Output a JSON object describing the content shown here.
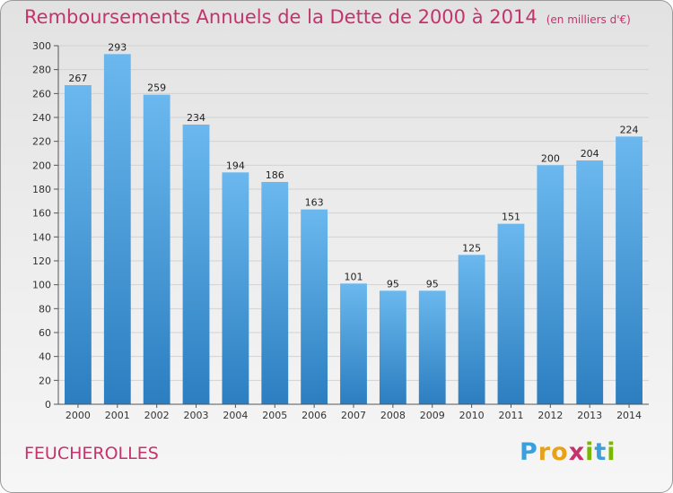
{
  "title": "Remboursements Annuels de la Dette de 2000 à 2014",
  "unit_label": "(en milliers d'€)",
  "commune": "FEUCHEROLLES",
  "logo": {
    "letters": [
      "P",
      "r",
      "o",
      "x",
      "i",
      "t",
      "i"
    ],
    "colors": [
      "#3aa0dc",
      "#e8a21a",
      "#e8a21a",
      "#c4336c",
      "#7ab800",
      "#3aa0dc",
      "#7ab800"
    ]
  },
  "chart_data": {
    "type": "bar",
    "title": "Remboursements Annuels de la Dette de 2000 à 2014",
    "ylabel": "(en milliers d'€)",
    "xlabel": "",
    "categories": [
      "2000",
      "2001",
      "2002",
      "2003",
      "2004",
      "2005",
      "2006",
      "2007",
      "2008",
      "2009",
      "2010",
      "2011",
      "2012",
      "2013",
      "2014"
    ],
    "values": [
      267,
      293,
      259,
      234,
      194,
      186,
      163,
      101,
      95,
      95,
      125,
      151,
      200,
      204,
      224
    ],
    "ylim": [
      0,
      300
    ],
    "yticks": [
      0,
      20,
      40,
      60,
      80,
      100,
      120,
      140,
      160,
      180,
      200,
      220,
      240,
      260,
      280,
      300
    ],
    "grid": true,
    "bar_color_top": "#6ab8ee",
    "bar_color_bottom": "#2c7ec0"
  }
}
